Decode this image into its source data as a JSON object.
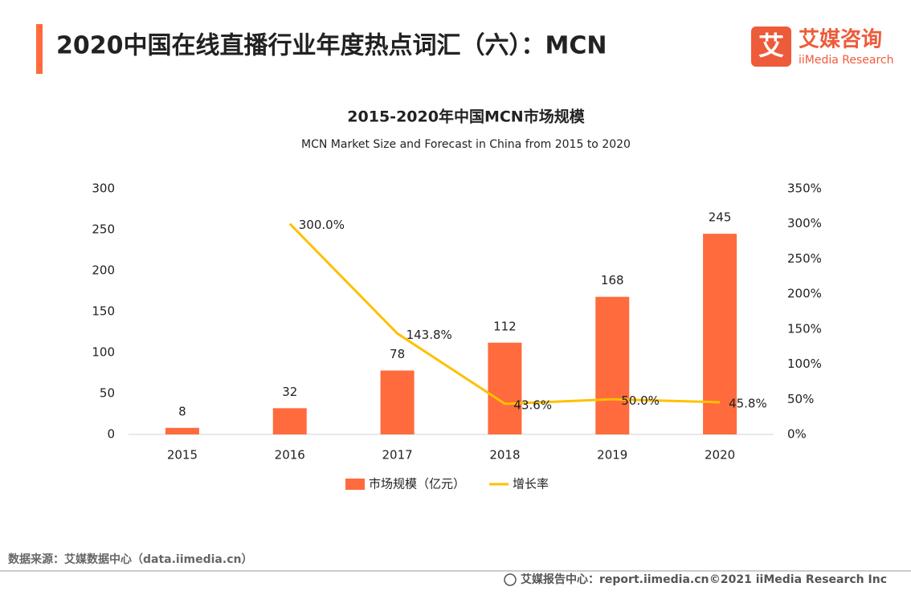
{
  "header": {
    "title": "2020中国在线直播行业年度热点词汇（六）：MCN"
  },
  "logo": {
    "icon": "艾",
    "name": "艾媒咨询",
    "subtitle": "iiMedia Research"
  },
  "chart_data": {
    "type": "bar",
    "title": "2015-2020年中国MCN市场规模",
    "subtitle": "MCN Market Size and Forecast in China from 2015 to 2020",
    "categories": [
      "2015",
      "2016",
      "2017",
      "2018",
      "2019",
      "2020"
    ],
    "series": [
      {
        "name": "市场规模（亿元）",
        "color": "#ff6b3d",
        "values": [
          8,
          32,
          78,
          112,
          168,
          245
        ]
      },
      {
        "name": "增长率",
        "color": "#ffc000",
        "type": "line",
        "axis": "y2",
        "values": [
          null,
          300.0,
          143.8,
          43.6,
          50.0,
          45.8
        ],
        "value_labels": [
          null,
          "300.0%",
          "143.8%",
          "43.6%",
          "50.0%",
          "45.8%"
        ]
      }
    ],
    "ylim": [
      0,
      300
    ],
    "yticks": [
      0,
      50,
      100,
      150,
      200,
      250,
      300
    ],
    "y2lim": [
      0,
      350
    ],
    "y2ticks": [
      {
        "value": 0,
        "label": "0%"
      },
      {
        "value": 50,
        "label": "50%"
      },
      {
        "value": 100,
        "label": "100%"
      },
      {
        "value": 150,
        "label": "150%"
      },
      {
        "value": 200,
        "label": "200%"
      },
      {
        "value": 250,
        "label": "250%"
      },
      {
        "value": 300,
        "label": "300%"
      },
      {
        "value": 350,
        "label": "350%"
      }
    ],
    "grid": false,
    "legend": "bottom"
  },
  "footer": {
    "source": "数据来源：艾媒数据中心（data.iimedia.cn）",
    "site": "艾媒报告中心：report.iimedia.cn",
    "copyright": "©2021  iiMedia Research  Inc"
  }
}
